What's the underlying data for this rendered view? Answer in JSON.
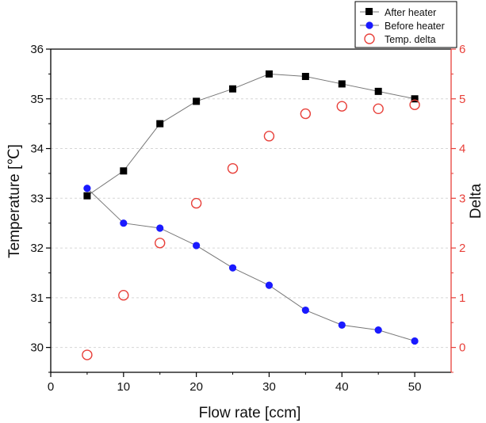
{
  "chart_data": {
    "type": "scatter",
    "xlabel": "Flow rate [ccm]",
    "ylabel": "Temperature [℃]",
    "y2label": "Delta",
    "xlim": [
      0,
      55
    ],
    "ylim": [
      29.5,
      36
    ],
    "y2lim": [
      -0.5,
      6
    ],
    "x_ticks": [
      0,
      10,
      20,
      30,
      40,
      50
    ],
    "y_ticks": [
      30,
      31,
      32,
      33,
      34,
      35,
      36
    ],
    "y2_ticks": [
      0,
      1,
      2,
      3,
      4,
      5,
      6
    ],
    "grid": "horizontal dashed",
    "legend_position": "top-right",
    "colors": {
      "after": "#000000",
      "before": "#1a1aff",
      "delta": "#e8403a",
      "right_axis": "#e8403a",
      "connector": "#777777"
    },
    "series": [
      {
        "name": "After heater",
        "axis": "left",
        "marker": "filled-square",
        "connected": true,
        "x": [
          5,
          10,
          15,
          20,
          25,
          30,
          35,
          40,
          45,
          50
        ],
        "y": [
          33.05,
          33.55,
          34.5,
          34.95,
          35.2,
          35.5,
          35.45,
          35.3,
          35.15,
          35.0
        ]
      },
      {
        "name": "Before heater",
        "axis": "left",
        "marker": "filled-circle",
        "connected": true,
        "x": [
          5,
          10,
          15,
          20,
          25,
          30,
          35,
          40,
          45,
          50
        ],
        "y": [
          33.2,
          32.5,
          32.4,
          32.05,
          31.6,
          31.25,
          30.75,
          30.45,
          30.35,
          30.13
        ]
      },
      {
        "name": "Temp. delta",
        "axis": "right",
        "marker": "open-circle",
        "connected": false,
        "x": [
          5,
          10,
          15,
          20,
          25,
          30,
          35,
          40,
          45,
          50
        ],
        "y": [
          -0.15,
          1.05,
          2.1,
          2.9,
          3.6,
          4.25,
          4.7,
          4.85,
          4.8,
          4.88
        ]
      }
    ]
  }
}
